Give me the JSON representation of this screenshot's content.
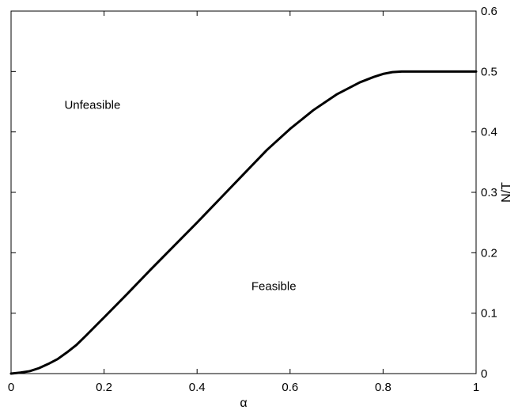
{
  "chart_data": {
    "type": "line",
    "title": "",
    "xlabel": "α",
    "ylabel": "N/T",
    "xlim": [
      0,
      1
    ],
    "ylim": [
      0,
      0.6
    ],
    "xticks": [
      "0",
      "0.2",
      "0.4",
      "0.6",
      "0.8",
      "1"
    ],
    "yticks": [
      "0",
      "0.1",
      "0.2",
      "0.3",
      "0.4",
      "0.5",
      "0.6"
    ],
    "y_axis_side": "right",
    "grid": false,
    "series": [
      {
        "color": "#000000",
        "x": [
          0,
          0.02,
          0.04,
          0.06,
          0.08,
          0.1,
          0.12,
          0.14,
          0.16,
          0.2,
          0.25,
          0.3,
          0.35,
          0.4,
          0.45,
          0.5,
          0.55,
          0.6,
          0.65,
          0.7,
          0.75,
          0.78,
          0.8,
          0.82,
          0.84,
          0.85,
          0.9,
          0.95,
          1.0
        ],
        "y": [
          0,
          0.0016,
          0.004,
          0.009,
          0.016,
          0.024,
          0.035,
          0.047,
          0.062,
          0.093,
          0.132,
          0.172,
          0.211,
          0.25,
          0.29,
          0.33,
          0.37,
          0.405,
          0.436,
          0.462,
          0.482,
          0.491,
          0.496,
          0.499,
          0.5,
          0.5,
          0.5,
          0.5,
          0.5
        ]
      }
    ],
    "annotations": [
      {
        "text": "Unfeasible",
        "x": 0.175,
        "y": 0.445
      },
      {
        "text": "Feasible",
        "x": 0.565,
        "y": 0.145
      }
    ]
  }
}
